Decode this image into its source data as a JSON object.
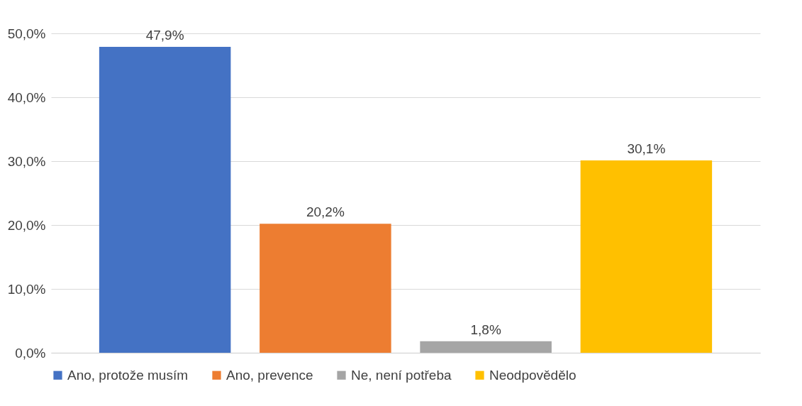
{
  "chart_data": {
    "type": "bar",
    "categories": [
      null,
      null,
      null,
      null
    ],
    "series": [
      {
        "name": "Ano, protože musím",
        "color": "#4472c4",
        "values": [
          47.9,
          null,
          null,
          null
        ],
        "value_labels": [
          "47,9%",
          null,
          null,
          null
        ]
      },
      {
        "name": "Ano, prevence",
        "color": "#ed7d31",
        "values": [
          null,
          20.2,
          null,
          null
        ],
        "value_labels": [
          null,
          "20,2%",
          null,
          null
        ]
      },
      {
        "name": "Ne, není potřeba",
        "color": "#a5a5a5",
        "values": [
          null,
          null,
          1.8,
          null
        ],
        "value_labels": [
          null,
          null,
          "1,8%",
          null
        ]
      },
      {
        "name": "Neodpovědělo",
        "color": "#ffc000",
        "values": [
          null,
          null,
          null,
          30.1
        ],
        "value_labels": [
          null,
          null,
          null,
          "30,1%"
        ]
      }
    ],
    "ylim": [
      0,
      50
    ],
    "yticks": [
      {
        "value": 0,
        "label": "0,0%"
      },
      {
        "value": 10,
        "label": "10,0%"
      },
      {
        "value": 20,
        "label": "20,0%"
      },
      {
        "value": 30,
        "label": "30,0%"
      },
      {
        "value": 40,
        "label": "40,0%"
      },
      {
        "value": 50,
        "label": "50,0%"
      }
    ],
    "grid": "y",
    "legend": "bottom",
    "tick_labels": "y"
  }
}
